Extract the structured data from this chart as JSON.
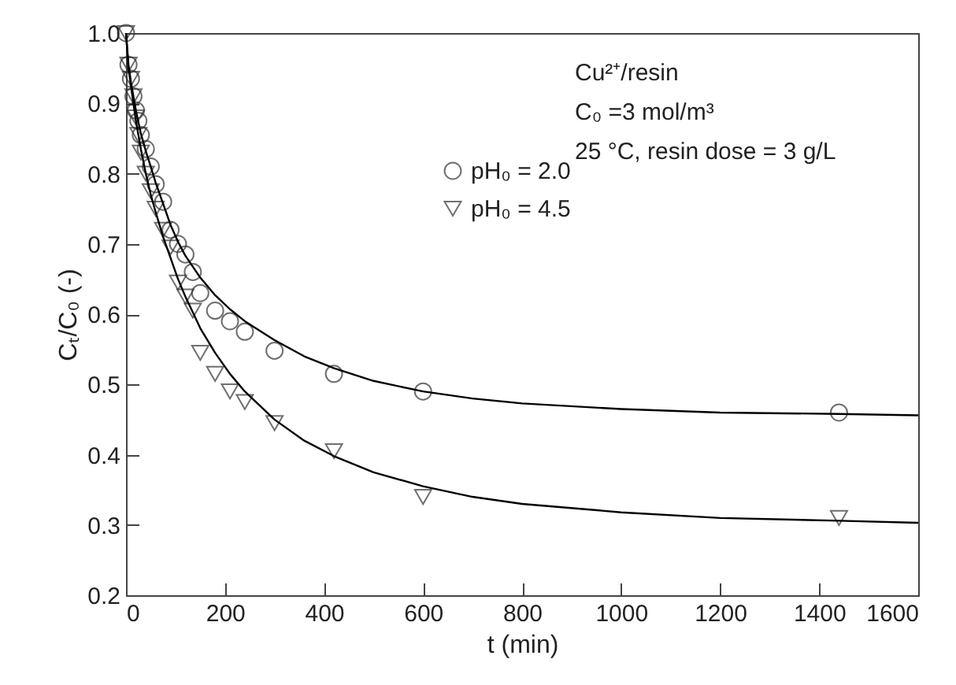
{
  "chart_data": {
    "type": "scatter",
    "xlabel": "t (min)",
    "ylabel": "Cₜ/C₀ (-)",
    "annotations": [
      "Cu²⁺/resin",
      "C₀ =3 mol/m³",
      "25 °C, resin dose = 3 g/L"
    ],
    "xlim": [
      0,
      1600
    ],
    "xticks": [
      0,
      200,
      400,
      600,
      800,
      1000,
      1200,
      1400,
      1600
    ],
    "ylim": [
      0.2,
      1.0
    ],
    "yticks": [
      0.2,
      0.3,
      0.4,
      0.5,
      0.6,
      0.7,
      0.8,
      0.9,
      {
        "value": 1.0,
        "label": "1.0"
      }
    ],
    "grid": false,
    "legend": "top",
    "series": [
      {
        "name": "pH₀ = 2.0",
        "marker": "circle",
        "color": "#333333",
        "x": [
          0,
          5,
          10,
          15,
          20,
          25,
          30,
          40,
          50,
          60,
          75,
          90,
          105,
          120,
          135,
          150,
          180,
          210,
          240,
          300,
          420,
          600,
          1440
        ],
        "values": [
          1.0,
          0.955,
          0.935,
          0.91,
          0.89,
          0.875,
          0.855,
          0.835,
          0.81,
          0.785,
          0.76,
          0.72,
          0.7,
          0.685,
          0.66,
          0.63,
          0.605,
          0.59,
          0.575,
          0.548,
          0.515,
          0.49,
          0.46
        ]
      },
      {
        "name": "pH₀ = 4.5",
        "marker": "triangle",
        "color": "#333333",
        "x": [
          0,
          5,
          10,
          15,
          20,
          25,
          30,
          40,
          50,
          60,
          75,
          90,
          105,
          120,
          135,
          150,
          180,
          210,
          240,
          300,
          420,
          600,
          1440
        ],
        "values": [
          1.0,
          0.955,
          0.935,
          0.91,
          0.88,
          0.855,
          0.83,
          0.8,
          0.775,
          0.75,
          0.72,
          0.695,
          0.645,
          0.625,
          0.605,
          0.545,
          0.515,
          0.49,
          0.475,
          0.445,
          0.405,
          0.34,
          0.31
        ]
      },
      {
        "type": "line",
        "color": "#000000",
        "x": [
          0,
          5,
          10,
          20,
          30,
          40,
          50,
          60,
          75,
          90,
          105,
          120,
          150,
          180,
          210,
          240,
          300,
          360,
          420,
          500,
          600,
          700,
          800,
          1000,
          1200,
          1440,
          1600
        ],
        "values": [
          1.0,
          0.955,
          0.93,
          0.89,
          0.857,
          0.832,
          0.81,
          0.787,
          0.757,
          0.727,
          0.703,
          0.683,
          0.652,
          0.627,
          0.607,
          0.59,
          0.563,
          0.54,
          0.523,
          0.505,
          0.49,
          0.48,
          0.473,
          0.465,
          0.46,
          0.458,
          0.456
        ]
      },
      {
        "type": "line",
        "color": "#000000",
        "x": [
          0,
          5,
          10,
          20,
          30,
          40,
          50,
          60,
          75,
          90,
          105,
          120,
          150,
          180,
          210,
          240,
          300,
          360,
          420,
          500,
          600,
          700,
          800,
          1000,
          1200,
          1440,
          1600
        ],
        "values": [
          1.0,
          0.95,
          0.925,
          0.875,
          0.835,
          0.8,
          0.77,
          0.745,
          0.71,
          0.68,
          0.65,
          0.625,
          0.58,
          0.545,
          0.515,
          0.49,
          0.45,
          0.42,
          0.398,
          0.375,
          0.355,
          0.34,
          0.33,
          0.318,
          0.31,
          0.306,
          0.303
        ]
      }
    ]
  }
}
